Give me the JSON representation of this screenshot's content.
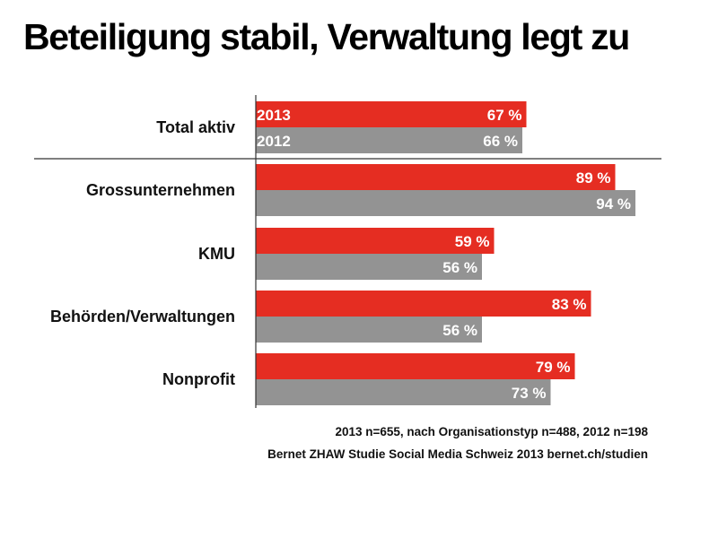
{
  "title": "Beteiligung stabil, Verwaltung legt zu",
  "chart_data": {
    "type": "bar",
    "orientation": "horizontal",
    "categories": [
      "Total aktiv",
      "Grossunternehmen",
      "KMU",
      "Behörden/Verwaltungen",
      "Nonprofit"
    ],
    "series": [
      {
        "name": "2013",
        "values": [
          67,
          89,
          59,
          83,
          79
        ],
        "color": "#e52d22"
      },
      {
        "name": "2012",
        "values": [
          66,
          94,
          56,
          56,
          73
        ],
        "color": "#939393"
      }
    ],
    "value_suffix": " %",
    "xlim": [
      0,
      100
    ],
    "legend": "inline-first-category",
    "grid": false
  },
  "footnote": {
    "line1": "2013 n=655, nach Organisationstyp n=488, 2012 n=198",
    "line2": "Bernet ZHAW Studie Social Media Schweiz 2013 bernet.ch/studien"
  }
}
